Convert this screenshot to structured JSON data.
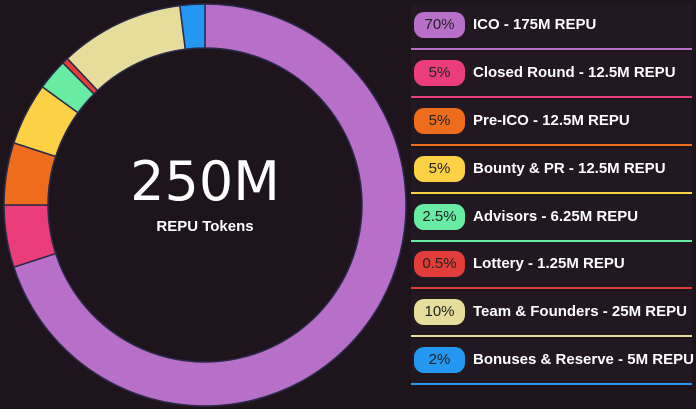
{
  "chart_data": {
    "type": "pie",
    "center_value": "250M",
    "center_label": "REPU Tokens",
    "slices": [
      {
        "percent_label": "70%",
        "label": "ICO - 175M REPU",
        "value": 70,
        "color": "#b86fc9"
      },
      {
        "percent_label": "5%",
        "label": "Closed Round - 12.5M REPU",
        "value": 5,
        "color": "#ea3d7a"
      },
      {
        "percent_label": "5%",
        "label": "Pre-ICO - 12.5M REPU",
        "value": 5,
        "color": "#ee6d1c"
      },
      {
        "percent_label": "5%",
        "label": "Bounty & PR - 12.5M REPU",
        "value": 5,
        "color": "#fcd146"
      },
      {
        "percent_label": "2.5%",
        "label": "Advisors - 6.25M REPU",
        "value": 2.5,
        "color": "#68eca4"
      },
      {
        "percent_label": "0.5%",
        "label": "Lottery - 1.25M REPU",
        "value": 0.5,
        "color": "#e23d38"
      },
      {
        "percent_label": "10%",
        "label": "Team & Founders - 25M REPU",
        "value": 10,
        "color": "#e7dd9b"
      },
      {
        "percent_label": "2%",
        "label": "Bonuses & Reserve - 5M REPU",
        "value": 2,
        "color": "#2497f0"
      }
    ]
  }
}
